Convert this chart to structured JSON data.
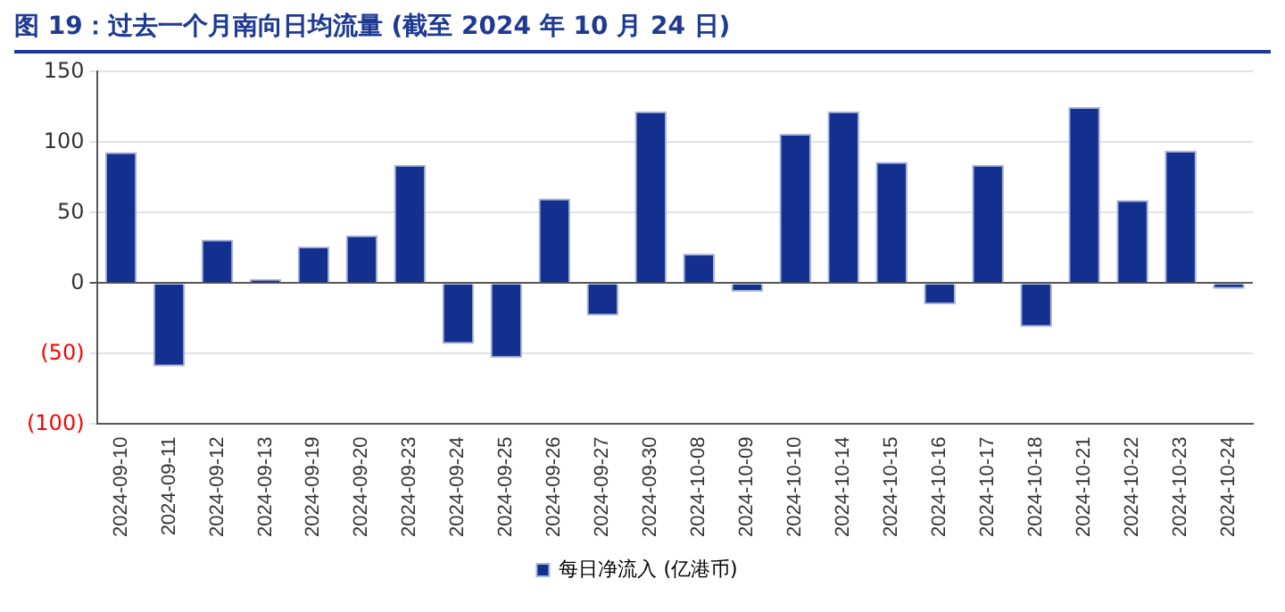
{
  "chart_data": {
    "type": "bar",
    "title": "图 19：过去一个月南向日均流量 (截至 2024 年 10 月 24 日)",
    "categories": [
      "2024-09-10",
      "2024-09-11",
      "2024-09-12",
      "2024-09-13",
      "2024-09-19",
      "2024-09-20",
      "2024-09-23",
      "2024-09-24",
      "2024-09-25",
      "2024-09-26",
      "2024-09-27",
      "2024-09-30",
      "2024-10-08",
      "2024-10-09",
      "2024-10-10",
      "2024-10-14",
      "2024-10-15",
      "2024-10-16",
      "2024-10-17",
      "2024-10-18",
      "2024-10-21",
      "2024-10-22",
      "2024-10-23",
      "2024-10-24"
    ],
    "series": [
      {
        "name": "每日净流入 (亿港币)",
        "color": "#14308f",
        "values": [
          93,
          -59,
          31,
          3,
          26,
          34,
          84,
          -43,
          -53,
          60,
          -23,
          122,
          21,
          -6,
          106,
          122,
          86,
          -15,
          84,
          -31,
          125,
          59,
          94,
          -4
        ]
      }
    ],
    "ylim": [
      -100,
      150
    ],
    "yticks": [
      {
        "value": -100,
        "label": "(100)"
      },
      {
        "value": -50,
        "label": "(50)"
      },
      0,
      50,
      100,
      150
    ],
    "grid": "y",
    "legend": "bottom"
  }
}
